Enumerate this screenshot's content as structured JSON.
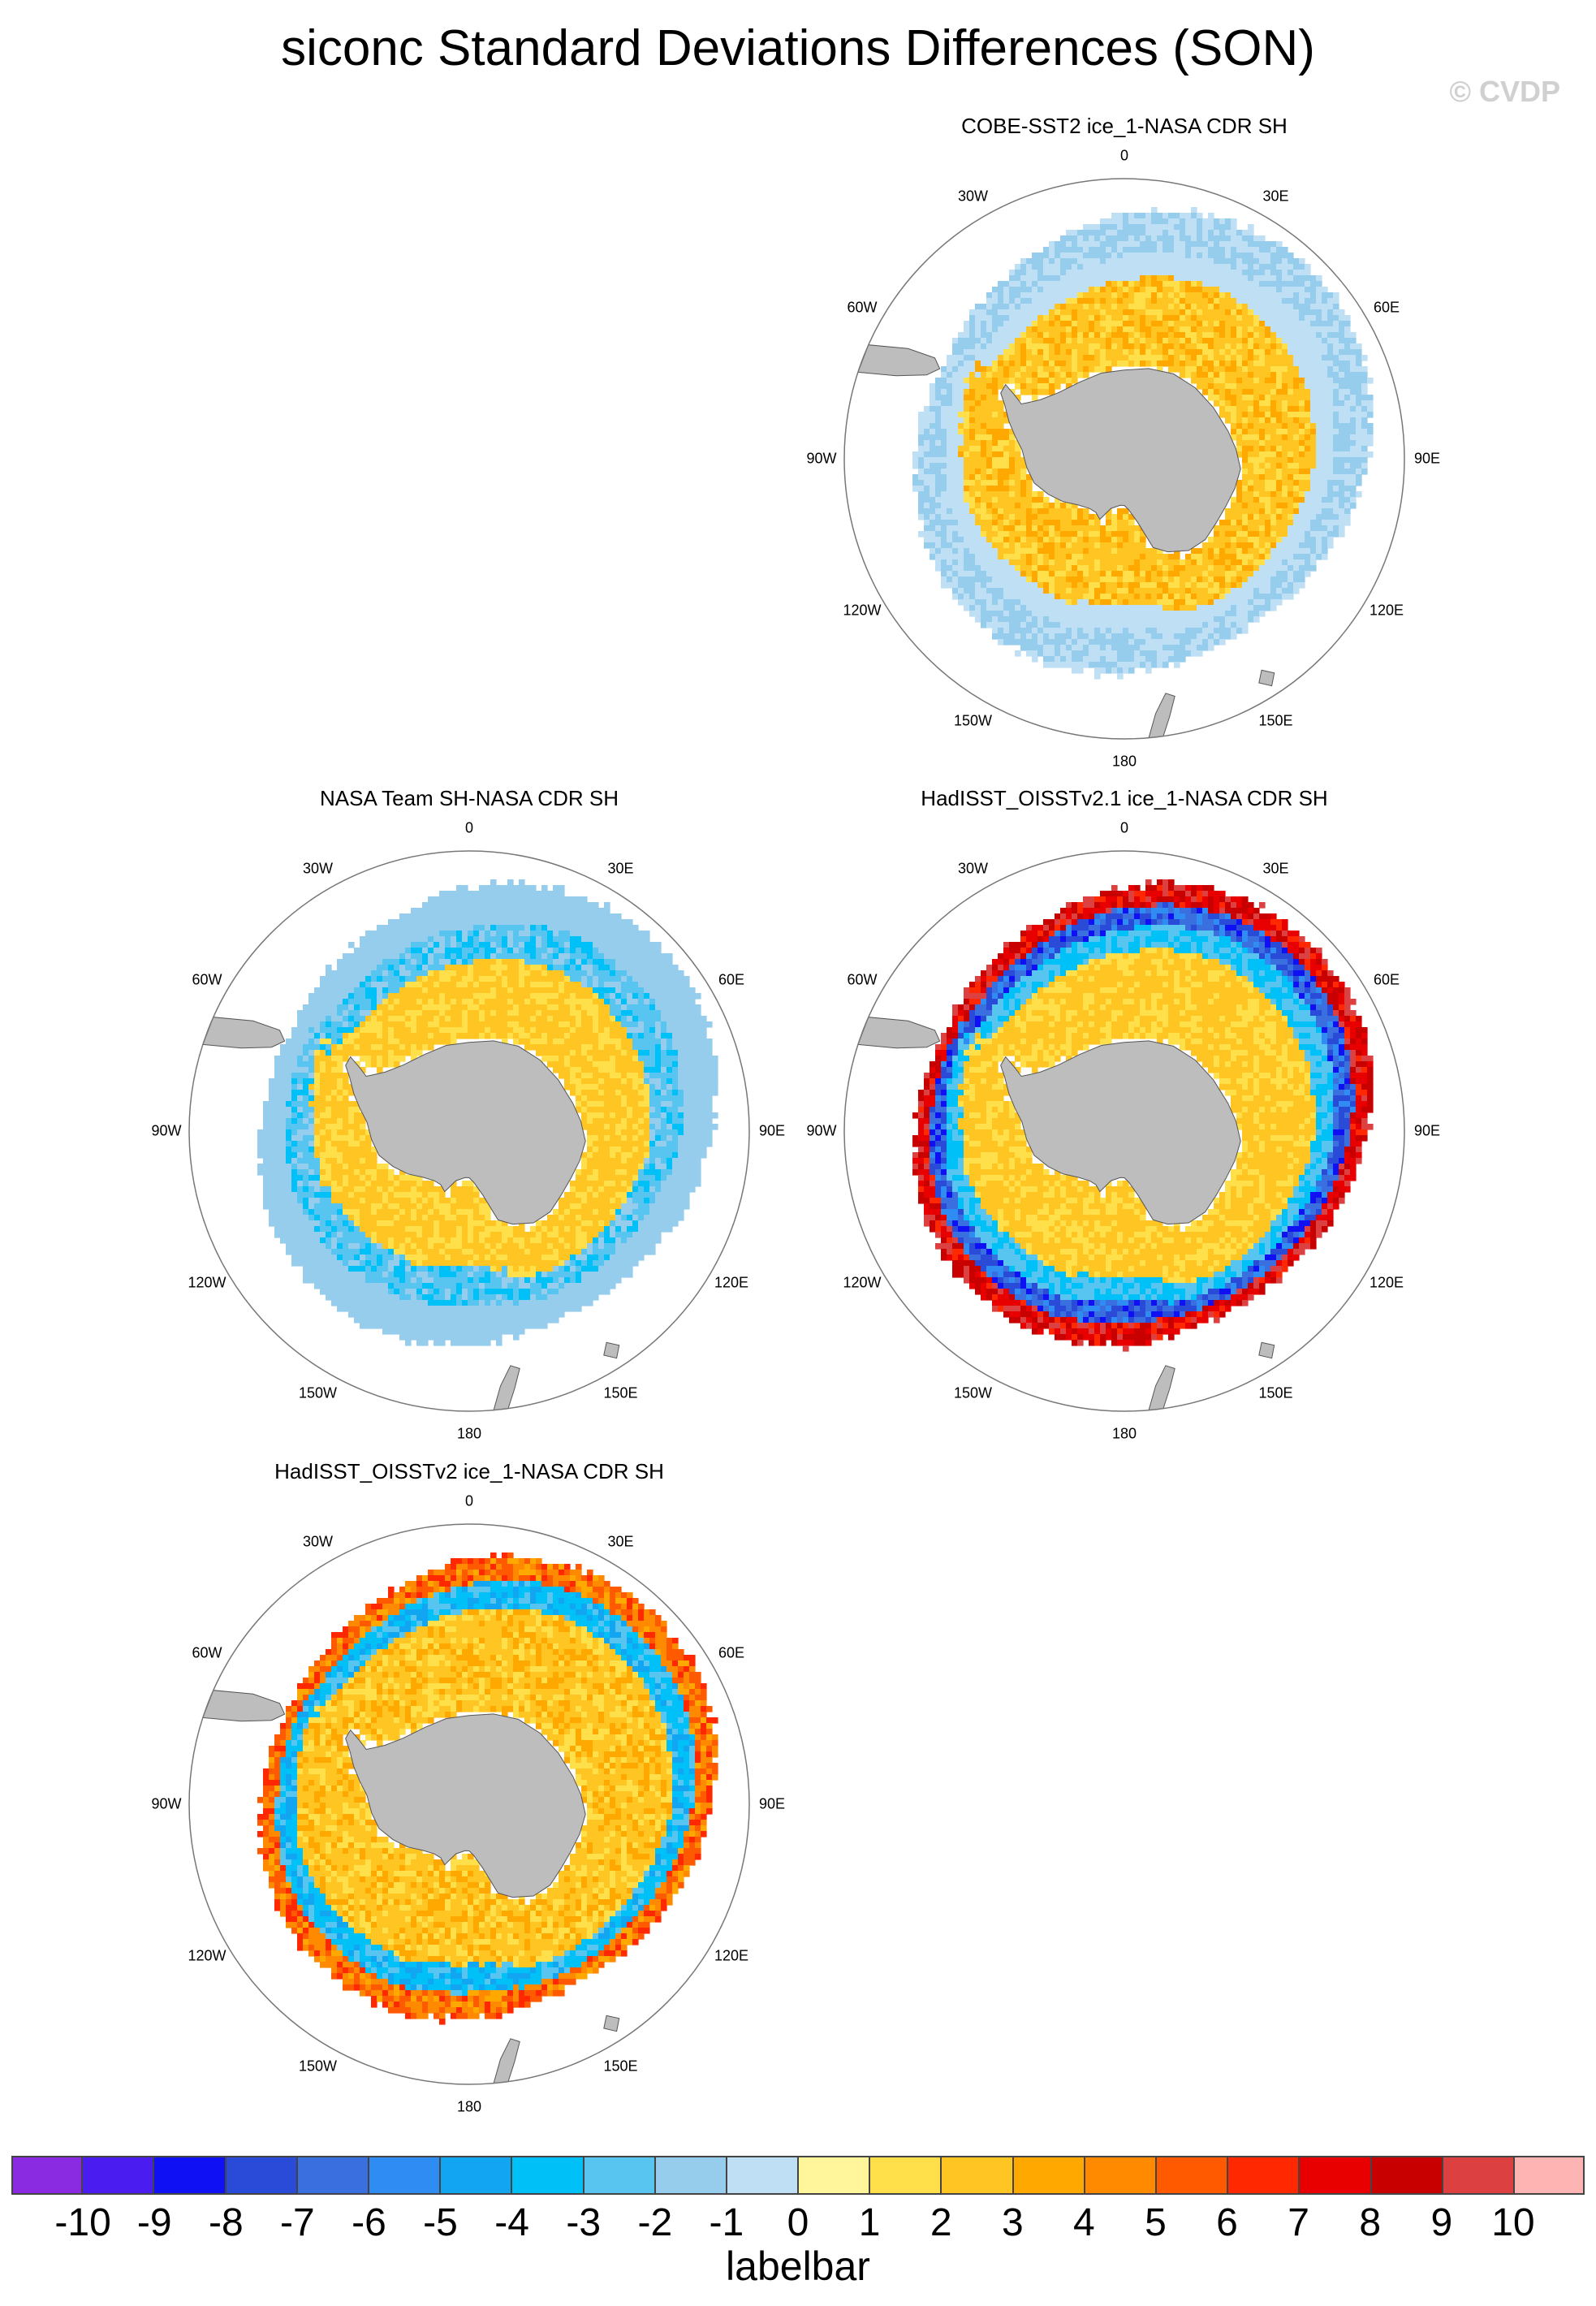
{
  "title": "siconc Standard Deviations Differences (SON)",
  "watermark": "© CVDP",
  "panels": [
    {
      "id": "cobe",
      "title": "COBE-SST2 ice_1-NASA CDR SH",
      "style": "cobe"
    },
    {
      "id": "nasateam",
      "title": "NASA Team SH-NASA CDR SH",
      "style": "nasateam"
    },
    {
      "id": "hadisst21",
      "title": "HadISST_OISSTv2.1 ice_1-NASA CDR SH",
      "style": "had21"
    },
    {
      "id": "hadisst2",
      "title": "HadISST_OISSTv2 ice_1-NASA CDR SH",
      "style": "had2"
    }
  ],
  "lon_labels": [
    "0",
    "30E",
    "60E",
    "90E",
    "120E",
    "150E",
    "180",
    "150W",
    "120W",
    "90W",
    "60W",
    "30W"
  ],
  "labelbar": {
    "colors": [
      "#8a2be2",
      "#4b1cf0",
      "#1010f5",
      "#2a4bd8",
      "#3a6fe0",
      "#2f8cf2",
      "#12a6f2",
      "#00c0f8",
      "#58c4f0",
      "#96ccec",
      "#bfe0f4",
      "#fff59a",
      "#ffe04a",
      "#ffc623",
      "#ffa800",
      "#ff8a00",
      "#ff5a00",
      "#ff2800",
      "#e80000",
      "#c80000",
      "#dc4040",
      "#ffb4b4"
    ],
    "ticks": [
      "-10",
      "-9",
      "-8",
      "-7",
      "-6",
      "-5",
      "-4",
      "-3",
      "-2",
      "-1",
      "0",
      "1",
      "2",
      "3",
      "4",
      "5",
      "6",
      "7",
      "8",
      "9",
      "10"
    ],
    "label": "labelbar"
  }
}
